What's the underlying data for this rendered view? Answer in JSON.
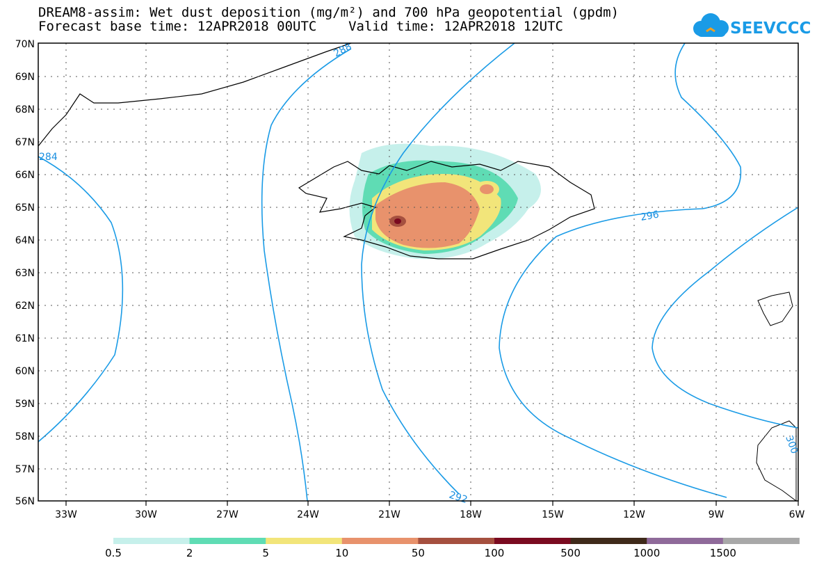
{
  "header": {
    "title_line1": "DREAM8-assim: Wet dust deposition (mg/m²) and 700 hPa geopotential (gpdm)",
    "title_line2": "Forecast base time: 12APR2018 00UTC    Valid time: 12APR2018 12UTC",
    "logo_text": "SEEVCCC"
  },
  "map": {
    "lat_labels": [
      "70N",
      "69N",
      "68N",
      "67N",
      "66N",
      "65N",
      "64N",
      "63N",
      "62N",
      "61N",
      "60N",
      "59N",
      "58N",
      "57N",
      "56N"
    ],
    "lon_labels": [
      "33W",
      "30W",
      "27W",
      "24W",
      "21W",
      "18W",
      "15W",
      "12W",
      "9W",
      "6W"
    ],
    "contour_labels": [
      "284",
      "288",
      "292",
      "296",
      "300"
    ],
    "contour_color": "#1a9be6"
  },
  "legend": {
    "labels": [
      "0.5",
      "2",
      "5",
      "10",
      "50",
      "100",
      "500",
      "1000",
      "1500"
    ],
    "colors": [
      "#c6f0eb",
      "#5fdcb4",
      "#f2e57a",
      "#e8926c",
      "#a5503f",
      "#7a0a20",
      "#3f2a1a",
      "#8f6a9a",
      "#a8a8a8"
    ]
  }
}
